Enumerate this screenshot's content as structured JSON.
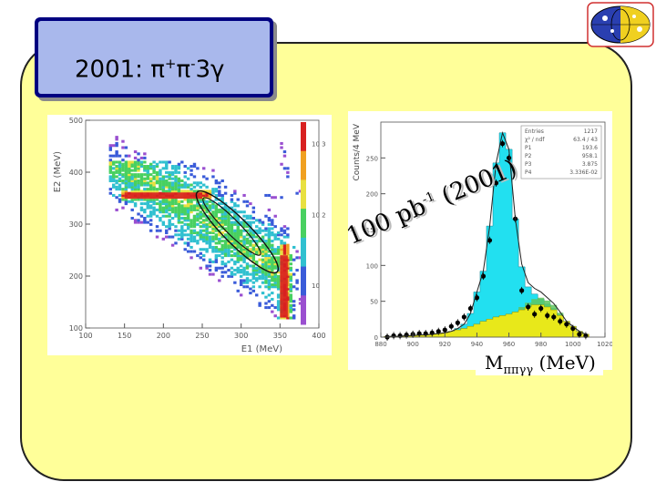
{
  "slide": {
    "title_prefix": "2001: ",
    "title_pi1": "π",
    "title_sup1": "+",
    "title_pi2": "π",
    "title_sup2": "-",
    "title_suffix": "3γ",
    "logo_name": "kloe-logo",
    "panel_color": "#ffff99",
    "title_fill": "#a9b8ec",
    "title_border": "#000080"
  },
  "chart_data": [
    {
      "type": "heatmap",
      "title": "",
      "xlabel": "E1 (MeV)",
      "ylabel": "E2 (MeV)",
      "xlim": [
        100,
        400
      ],
      "ylim": [
        100,
        500
      ],
      "xticks": [
        "100",
        "150",
        "200",
        "250",
        "300",
        "350",
        "400"
      ],
      "yticks": [
        "100",
        "200",
        "300",
        "400",
        "500"
      ],
      "color_scale": "log",
      "zticks": [
        "10",
        "10 2",
        "10 3"
      ],
      "bands": [
        {
          "name": "horizontal-band",
          "y": 355,
          "x_range": [
            150,
            250
          ]
        },
        {
          "name": "vertical-band",
          "x": 355,
          "y_range": [
            120,
            240
          ]
        }
      ],
      "selection": "elliptical cut along E1 + E2 diagonal",
      "colors": {
        "low": "#3a5bd9",
        "mid": "#48d060",
        "high": "#d82020"
      }
    },
    {
      "type": "bar",
      "title": "",
      "xlabel": "Mππγγ (MeV)",
      "ylabel": "Counts/4 MeV",
      "xlim": [
        880,
        1020
      ],
      "ylim": [
        0,
        300
      ],
      "xticks": [
        "880",
        "900",
        "920",
        "940",
        "960",
        "980",
        "1000",
        "1020"
      ],
      "yticks": [
        "0",
        "50",
        "100",
        "150",
        "200",
        "250"
      ],
      "annotation": {
        "main": "100 pb",
        "sup": "-1",
        "tail": " (2001)"
      },
      "stats_box": {
        "title": "Entries",
        "title_value": "1217",
        "rows": [
          {
            "label": "χ² / ndf",
            "value": "63.4 / 43"
          },
          {
            "label": "P1",
            "value": "193.6"
          },
          {
            "label": "P2",
            "value": "958.1"
          },
          {
            "label": "P3",
            "value": "3.875"
          },
          {
            "label": "P4",
            "value": "3.336E-02"
          }
        ]
      },
      "bins": [
        884,
        888,
        892,
        896,
        900,
        904,
        908,
        912,
        916,
        920,
        924,
        928,
        932,
        936,
        940,
        944,
        948,
        952,
        956,
        960,
        964,
        968,
        972,
        976,
        980,
        984,
        988,
        992,
        996,
        1000,
        1004,
        1008
      ],
      "series": [
        {
          "name": "signal",
          "color": "#22e0f0",
          "values": [
            0,
            0,
            0,
            0,
            0,
            0,
            0,
            0,
            0,
            0,
            0,
            2,
            6,
            18,
            45,
            70,
            130,
            215,
            255,
            230,
            130,
            60,
            28,
            15,
            8,
            4,
            2,
            1,
            0,
            0,
            0,
            0
          ]
        },
        {
          "name": "background",
          "color": "#e8e81a",
          "values": [
            1,
            1,
            1,
            2,
            2,
            3,
            3,
            4,
            5,
            6,
            8,
            10,
            12,
            15,
            18,
            22,
            25,
            28,
            30,
            32,
            35,
            38,
            42,
            45,
            45,
            42,
            38,
            30,
            22,
            15,
            8,
            4
          ]
        },
        {
          "name": "green-component",
          "color": "#5ec65e",
          "values": [
            0,
            0,
            0,
            0,
            0,
            0,
            0,
            0,
            0,
            0,
            0,
            0,
            0,
            0,
            0,
            0,
            0,
            0,
            0,
            0,
            0,
            4,
            6,
            8,
            10,
            9,
            7,
            4,
            0,
            0,
            0,
            0
          ]
        },
        {
          "name": "data",
          "color": "#000000",
          "values": [
            0,
            2,
            2,
            3,
            4,
            5,
            5,
            6,
            8,
            10,
            15,
            20,
            28,
            40,
            55,
            85,
            135,
            215,
            270,
            250,
            165,
            65,
            42,
            32,
            40,
            30,
            28,
            22,
            18,
            12,
            4,
            2
          ]
        }
      ]
    }
  ]
}
